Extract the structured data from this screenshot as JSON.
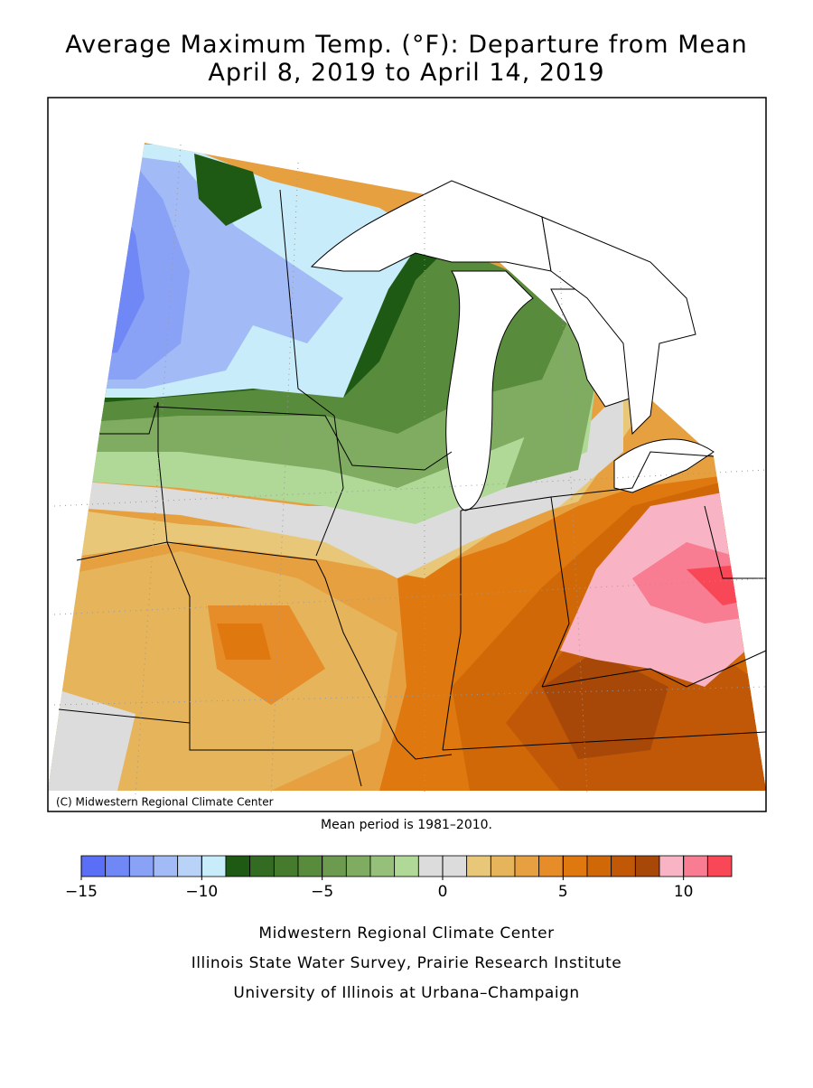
{
  "title": [
    "Average Maximum Temp. (°F): Departure from Mean",
    "April 8, 2019 to April 14, 2019"
  ],
  "map": {
    "credit": "(C) Midwestern Regional Climate Center"
  },
  "note": "Mean period is 1981–2010.",
  "colorbar": {
    "bins": [
      -15,
      -14,
      -13,
      -12,
      -11,
      -10,
      -9,
      -8,
      -7,
      -6,
      -5,
      -4,
      -3,
      -2,
      -1,
      0,
      1,
      2,
      3,
      4,
      5,
      6,
      7,
      8,
      9,
      10,
      11,
      12
    ],
    "colors": [
      "#5a6ef6",
      "#7088f6",
      "#8aa2f6",
      "#a2baf6",
      "#b8d2f8",
      "#c8ecfa",
      "#1e5a14",
      "#336b22",
      "#467b2d",
      "#588b3c",
      "#6c9a4e",
      "#80ac62",
      "#96c07a",
      "#b0d896",
      "#dcdcdc",
      "#dcdcdc",
      "#e8c878",
      "#e6b45a",
      "#e6a040",
      "#e68c28",
      "#e07810",
      "#d06808",
      "#c05808",
      "#a84808",
      "#f8b4c4",
      "#f87c92",
      "#f84858"
    ],
    "ticks": [
      {
        "value": -15,
        "label": "−15"
      },
      {
        "value": -10,
        "label": "−10"
      },
      {
        "value": -5,
        "label": "−5"
      },
      0,
      5,
      10
    ]
  },
  "footer": [
    "Midwestern Regional Climate Center",
    "Illinois State Water Survey, Prairie Research Institute",
    "University of Illinois at Urbana–Champaign"
  ]
}
